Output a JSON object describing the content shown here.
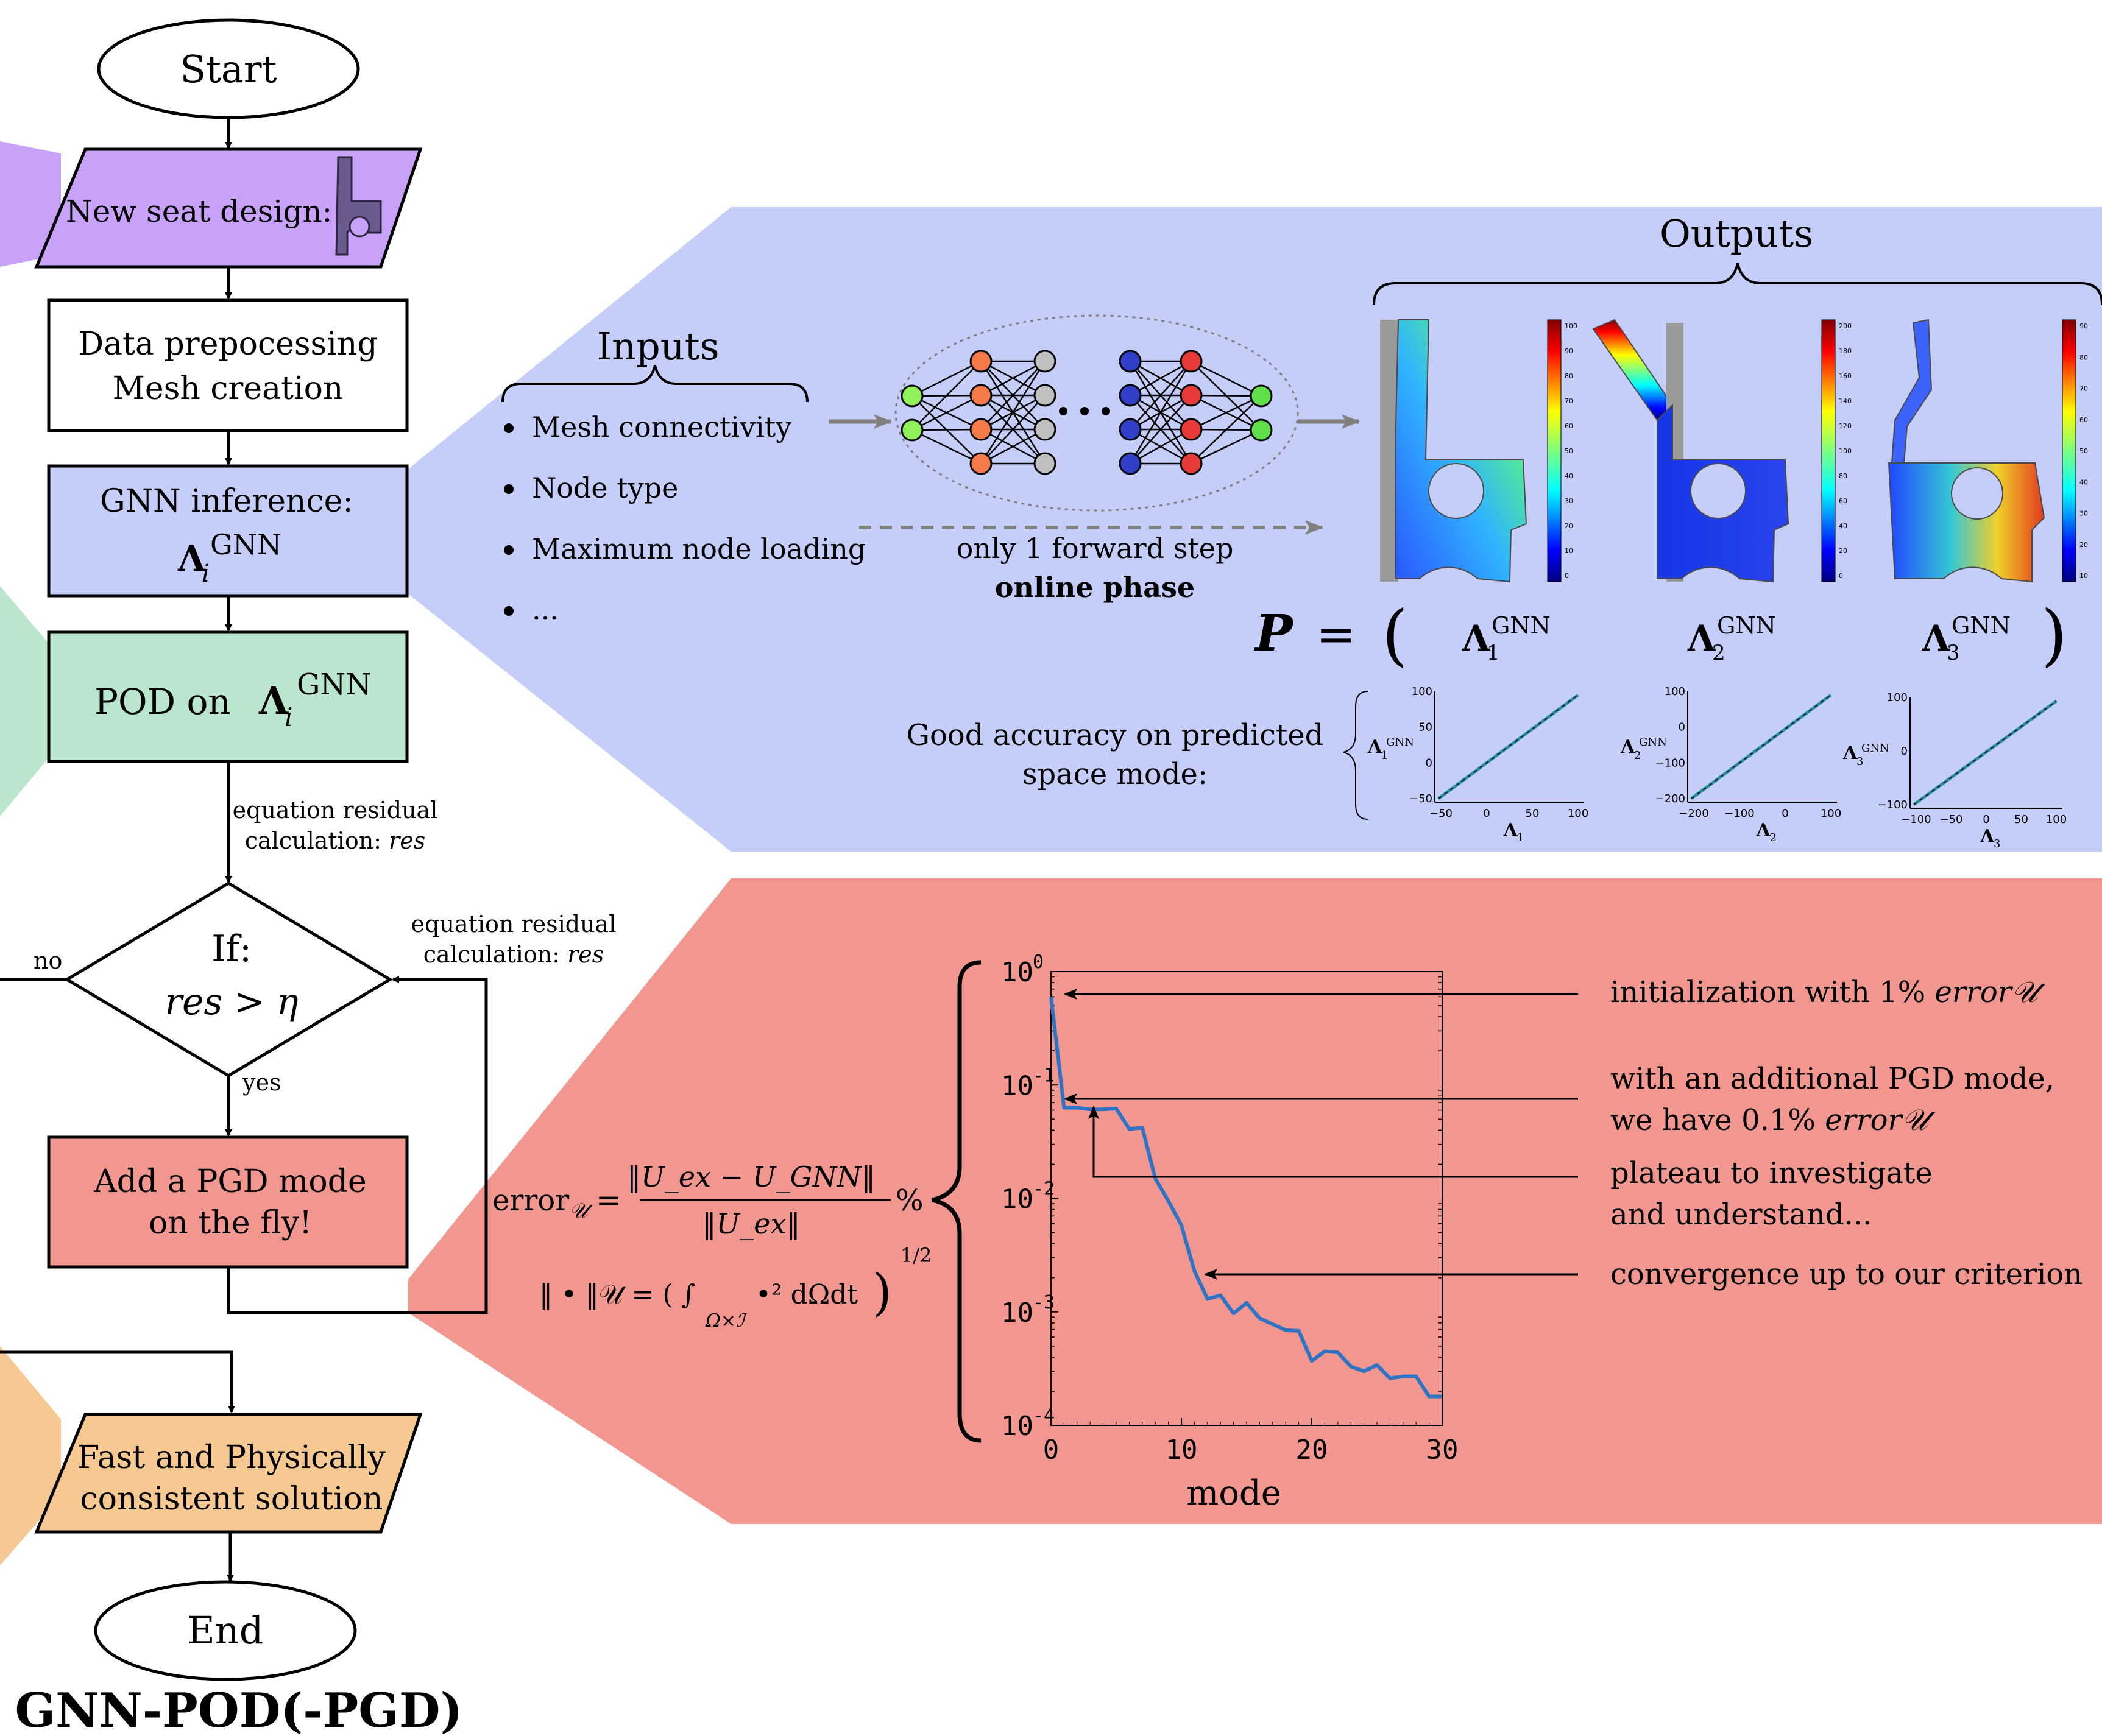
{
  "flowchart": {
    "start": "Start",
    "new_seat": "New seat design:",
    "prep_line1": "Data prepocessing",
    "prep_line2": "Mesh creation",
    "gnn_line1": "GNN inference:",
    "gnn_symbol": "Λ",
    "gnn_sub": "i",
    "gnn_sup": "GNN",
    "pod_label": "POD on",
    "pod_symbol": "Λ",
    "pod_sub": "i",
    "pod_sup": "GNN",
    "residual_line1": "equation residual",
    "residual_line2": "calculation:",
    "residual_var": "res",
    "decision_if": "If:",
    "decision_cond": "res > η",
    "no_label": "no",
    "yes_label": "yes",
    "loop_residual_line1": "equation residual",
    "loop_residual_line2": "calculation:",
    "loop_residual_var": "res",
    "pgd_line1": "Add a PGD mode",
    "pgd_line2": "on the fly!",
    "fast_line1": "Fast and Physically",
    "fast_line2": "consistent solution",
    "end": "End",
    "method_title": "GNN-POD(-PGD)"
  },
  "gnn_panel": {
    "inputs_title": "Inputs",
    "inputs": [
      "Mesh connectivity",
      "Node type",
      "Maximum node loading",
      "..."
    ],
    "forward_step": "only 1 forward step",
    "online_phase": "online phase",
    "outputs_title": "Outputs",
    "colorbars": [
      {
        "ticks": [
          "100",
          "90",
          "80",
          "70",
          "60",
          "50",
          "40",
          "30",
          "20",
          "10",
          "0"
        ]
      },
      {
        "ticks": [
          "200",
          "180",
          "160",
          "140",
          "120",
          "100",
          "80",
          "60",
          "40",
          "20",
          "0"
        ]
      },
      {
        "ticks": [
          "90",
          "80",
          "70",
          "60",
          "50",
          "40",
          "30",
          "20",
          "10"
        ]
      }
    ],
    "P_symbol": "P",
    "equals": "=",
    "paren_open": "(",
    "paren_close": ")",
    "modes": [
      {
        "sym": "Λ",
        "sub": "1",
        "sup": "GNN"
      },
      {
        "sym": "Λ",
        "sub": "2",
        "sup": "GNN"
      },
      {
        "sym": "Λ",
        "sub": "3",
        "sup": "GNN"
      }
    ],
    "accuracy_line1": "Good accuracy on predicted",
    "accuracy_line2": "space mode:",
    "scatter": [
      {
        "ylabel_sym": "Λ",
        "ylabel_sub": "1",
        "ylabel_sup": "GNN",
        "xlabel_sym": "Λ",
        "xlabel_sub": "1",
        "xticks": [
          "−50",
          "0",
          "50",
          "100"
        ],
        "yticks": [
          "100",
          "50",
          "0",
          "−50"
        ]
      },
      {
        "ylabel_sym": "Λ",
        "ylabel_sub": "2",
        "ylabel_sup": "GNN",
        "xlabel_sym": "Λ",
        "xlabel_sub": "2",
        "xticks": [
          "−200",
          "−100",
          "0",
          "100"
        ],
        "yticks": [
          "100",
          "0",
          "−100",
          "−200"
        ]
      },
      {
        "ylabel_sym": "Λ",
        "ylabel_sub": "3",
        "ylabel_sup": "GNN",
        "xlabel_sym": "Λ",
        "xlabel_sub": "3",
        "xticks": [
          "−100",
          "−50",
          "0",
          "50",
          "100"
        ],
        "yticks": [
          "100",
          "0",
          "−100"
        ]
      }
    ]
  },
  "pgd_panel": {
    "error_lhs": "error",
    "error_sub": "𝒰",
    "error_eq": "=",
    "error_num": "‖U_ex − U_GNN‖",
    "error_den": "‖U_ex‖",
    "percent": "%",
    "norm_eq": "‖ • ‖𝒰 = ( ∫",
    "norm_domain": "Ω×ℐ",
    "norm_integrand": "•² dΩdt",
    "norm_close": ")",
    "norm_power": "1/2",
    "xlabel": "mode",
    "annotations": [
      {
        "line1": "initialization with 1%",
        "ital": "error𝒰",
        "line2": ""
      },
      {
        "line1": "with an additional PGD mode,",
        "line2": "we have 0.1%",
        "ital": "error𝒰"
      },
      {
        "line1": "plateau to investigate",
        "line2": "and understand...",
        "ital": ""
      },
      {
        "line1": "convergence up to our criterion",
        "line2": "",
        "ital": ""
      }
    ]
  },
  "chart_data": {
    "type": "line",
    "xlabel": "mode",
    "ylabel": "",
    "yscale": "log",
    "xlim": [
      0,
      30
    ],
    "ylim": [
      0.0001,
      1
    ],
    "xticks": [
      0,
      10,
      20,
      30
    ],
    "yticks": [
      1,
      0.1,
      0.01,
      0.001,
      0.0001
    ],
    "ytick_labels": [
      [
        "10",
        "0"
      ],
      [
        "10",
        "-1"
      ],
      [
        "10",
        "-2"
      ],
      [
        "10",
        "-3"
      ],
      [
        "10",
        "-4"
      ]
    ],
    "series": [
      {
        "x": [
          0,
          1,
          2,
          3,
          4,
          5,
          6,
          7,
          8,
          9,
          10,
          11,
          12,
          13,
          14,
          15,
          16,
          17,
          18,
          19,
          20,
          21,
          22,
          23,
          24,
          25,
          26,
          27,
          28,
          29,
          30
        ],
        "values": [
          0.6,
          0.063,
          0.063,
          0.061,
          0.061,
          0.062,
          0.041,
          0.042,
          0.015,
          0.0095,
          0.0058,
          0.0023,
          0.0013,
          0.0014,
          0.00097,
          0.0012,
          0.00088,
          0.00078,
          0.00069,
          0.00068,
          0.00037,
          0.00045,
          0.00044,
          0.00033,
          0.0003,
          0.00034,
          0.00026,
          0.00027,
          0.00027,
          0.00018,
          0.00018
        ]
      }
    ]
  },
  "colors": {
    "purple": "#c8a2f8",
    "blue_box": "#c5cdf9",
    "green": "#b9e6cc",
    "red_box": "#f2978f",
    "orange": "#f6c892",
    "blue_panel": "#c5cdf9",
    "red_panel": "#f2978f",
    "line": "#2f73c4",
    "arrow_gray": "#7f7f7f"
  }
}
